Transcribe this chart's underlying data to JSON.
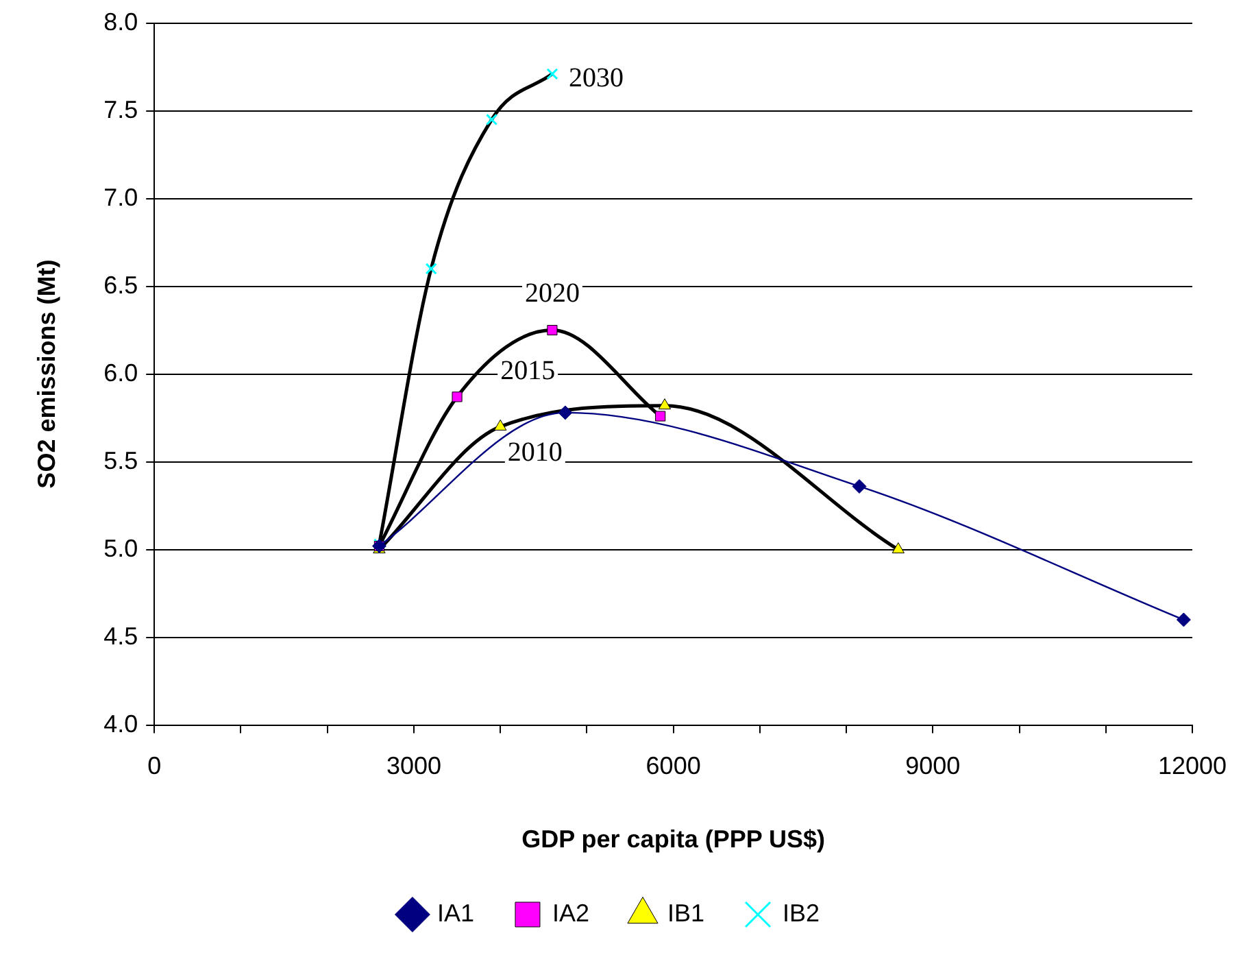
{
  "chart_data": {
    "type": "line",
    "xlabel": "GDP per capita (PPP US$)",
    "ylabel": "SO2 emissions (Mt)",
    "xlim": [
      0,
      12000
    ],
    "xticks": [
      0,
      {
        "value": 1000,
        "label": null
      },
      {
        "value": 2000,
        "label": null
      },
      3000,
      {
        "value": 4000,
        "label": null
      },
      {
        "value": 5000,
        "label": null
      },
      6000,
      {
        "value": 7000,
        "label": null
      },
      {
        "value": 8000,
        "label": null
      },
      9000,
      {
        "value": 10000,
        "label": null
      },
      {
        "value": 11000,
        "label": null
      },
      12000
    ],
    "ylim": [
      4.0,
      8.0
    ],
    "yticks": [
      {
        "value": 4,
        "label": "4.0"
      },
      4.5,
      {
        "value": 5,
        "label": "5.0"
      },
      5.5,
      {
        "value": 6,
        "label": "6.0"
      },
      6.5,
      {
        "value": 7,
        "label": "7.0"
      },
      7.5,
      {
        "value": 8,
        "label": "8.0"
      }
    ],
    "grid": "y",
    "legend": "bottom",
    "series": [
      {
        "name": "IA1",
        "color": "#000080",
        "marker": "diamond",
        "x": [
          2600,
          4750,
          8150,
          11900
        ],
        "values": [
          5.02,
          5.78,
          5.36,
          4.6
        ]
      },
      {
        "name": "IA2",
        "color": "#ff00ff",
        "marker": "square",
        "x": [
          2600,
          3500,
          4600,
          5850
        ],
        "values": [
          5.02,
          5.87,
          6.25,
          5.76
        ]
      },
      {
        "name": "IB1",
        "color": "#ffff00",
        "marker": "triangle",
        "x": [
          2600,
          4000,
          5900,
          8600
        ],
        "values": [
          5.0,
          5.7,
          5.82,
          5.0
        ]
      },
      {
        "name": "IB2",
        "color": "#00ffff",
        "marker": "cross",
        "x": [
          2600,
          3200,
          3900,
          4600
        ],
        "values": [
          5.03,
          6.6,
          7.45,
          7.71
        ]
      }
    ],
    "annotations": [
      {
        "text": "2030",
        "x": 4600,
        "y": 7.71
      },
      {
        "text": "2020",
        "x": 4600,
        "y": 6.25
      },
      {
        "text": "2015",
        "x": 4000,
        "y": 5.7
      },
      {
        "text": "2010",
        "x": 4750,
        "y": 5.78
      }
    ]
  }
}
